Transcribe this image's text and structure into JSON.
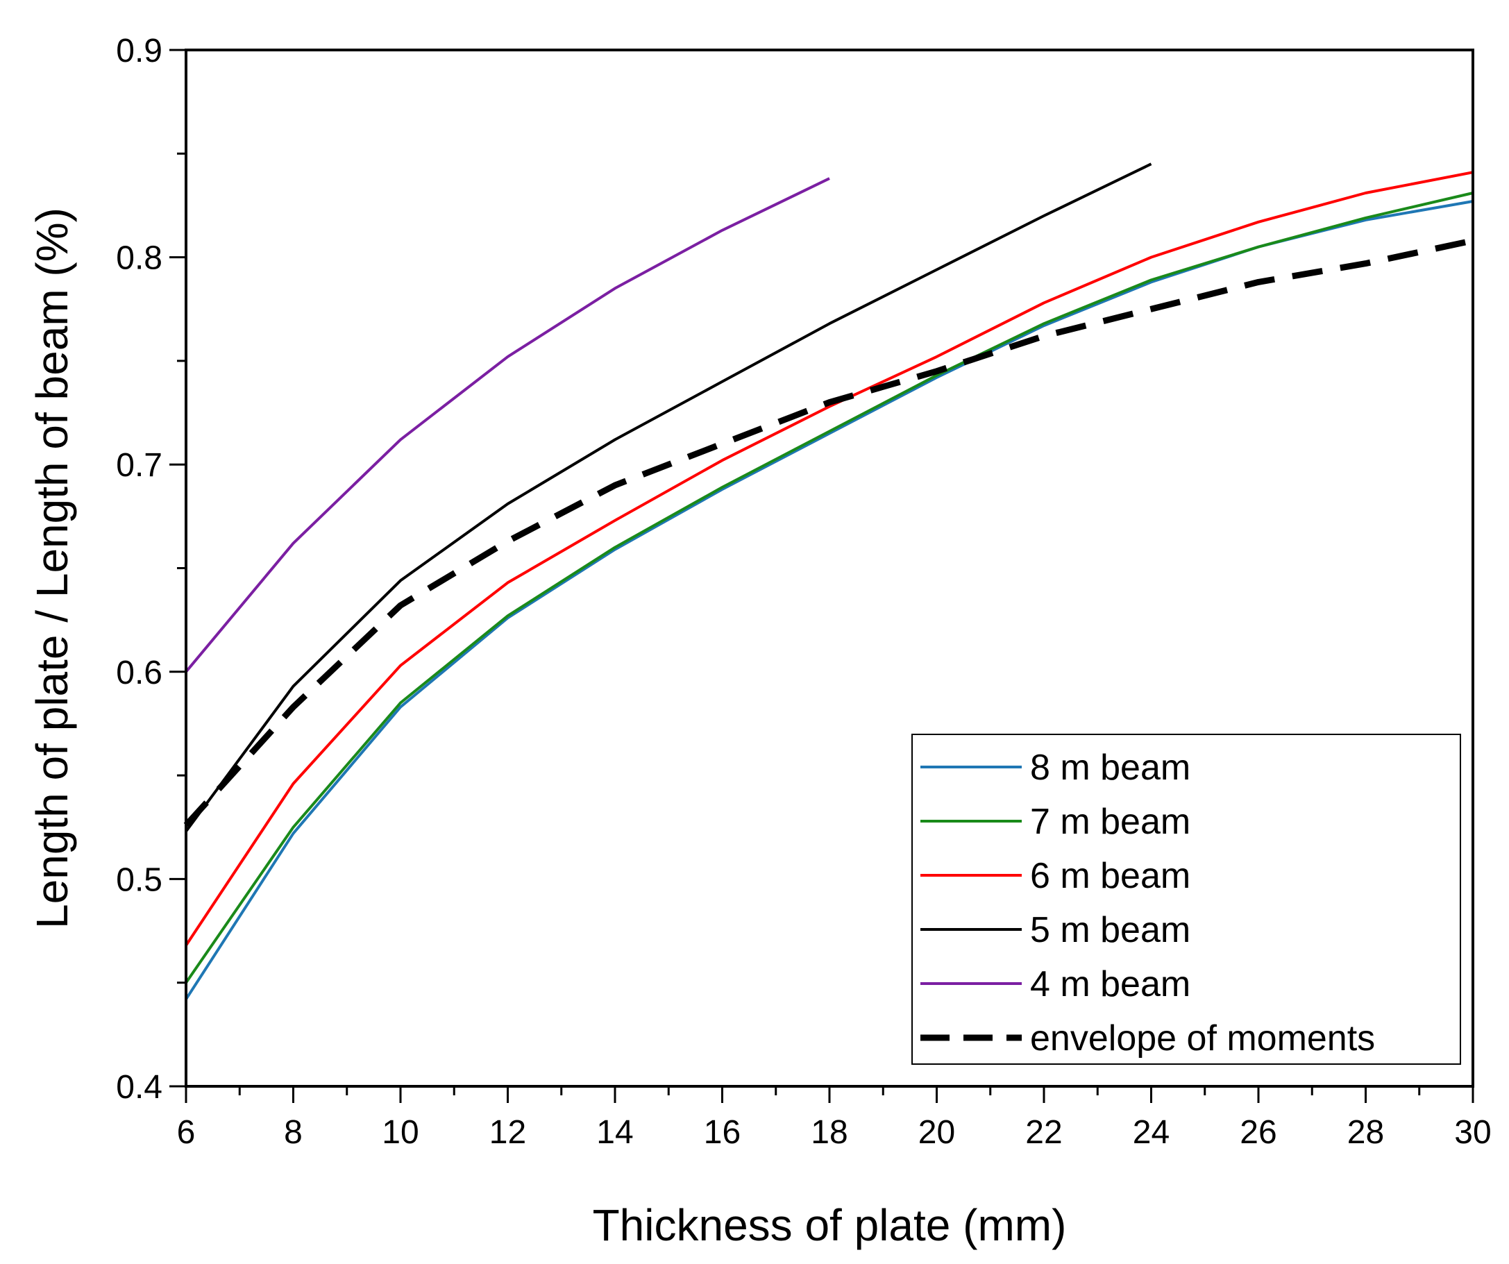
{
  "chart_data": {
    "type": "line",
    "title": "",
    "xlabel": "Thickness of plate (mm)",
    "ylabel": "Length of plate / Length of beam (%)",
    "xlim": [
      6,
      30
    ],
    "ylim": [
      0.4,
      0.9
    ],
    "x_ticks": [
      6,
      8,
      10,
      12,
      14,
      16,
      18,
      20,
      22,
      24,
      26,
      28,
      30
    ],
    "x_tick_labels": [
      "6",
      "8",
      "10",
      "12",
      "14",
      "16",
      "18",
      "20",
      "22",
      "24",
      "26",
      "28",
      "30"
    ],
    "y_ticks": [
      0.4,
      0.5,
      0.6,
      0.7,
      0.8,
      0.9
    ],
    "y_tick_labels": [
      "0.4",
      "0.5",
      "0.6",
      "0.7",
      "0.8",
      "0.9"
    ],
    "grid": false,
    "legend_position": "bottom-right",
    "series": [
      {
        "name": "8 m beam",
        "color": "#1f77b4",
        "dashed": false,
        "x": [
          6,
          8,
          10,
          12,
          14,
          16,
          18,
          20,
          22,
          24,
          26,
          28,
          30
        ],
        "y": [
          0.442,
          0.522,
          0.583,
          0.626,
          0.659,
          0.688,
          0.715,
          0.742,
          0.767,
          0.788,
          0.805,
          0.818,
          0.827
        ]
      },
      {
        "name": "7 m beam",
        "color": "#1a8a1a",
        "dashed": false,
        "x": [
          6,
          8,
          10,
          12,
          14,
          16,
          18,
          20,
          22,
          24,
          26,
          28,
          30
        ],
        "y": [
          0.45,
          0.525,
          0.585,
          0.627,
          0.66,
          0.689,
          0.716,
          0.743,
          0.768,
          0.789,
          0.805,
          0.819,
          0.831
        ]
      },
      {
        "name": "6 m beam",
        "color": "#ff0000",
        "dashed": false,
        "x": [
          6,
          8,
          10,
          12,
          14,
          16,
          18,
          20,
          22,
          24,
          26,
          28,
          30
        ],
        "y": [
          0.468,
          0.546,
          0.603,
          0.643,
          0.673,
          0.702,
          0.728,
          0.752,
          0.778,
          0.8,
          0.817,
          0.831,
          0.841
        ]
      },
      {
        "name": "5 m beam",
        "color": "#000000",
        "dashed": false,
        "x": [
          6,
          8,
          10,
          12,
          14,
          16,
          18,
          20,
          22,
          24
        ],
        "y": [
          0.523,
          0.593,
          0.644,
          0.681,
          0.712,
          0.74,
          0.768,
          0.794,
          0.82,
          0.845
        ]
      },
      {
        "name": "4 m beam",
        "color": "#7b1fa2",
        "dashed": false,
        "x": [
          6,
          8,
          10,
          12,
          14,
          16,
          18
        ],
        "y": [
          0.6,
          0.662,
          0.712,
          0.752,
          0.785,
          0.813,
          0.838
        ]
      },
      {
        "name": "envelope of moments",
        "color": "#000000",
        "dashed": true,
        "x": [
          6,
          8,
          10,
          12,
          14,
          16,
          18,
          20,
          22,
          24,
          26,
          28,
          30
        ],
        "y": [
          0.526,
          0.583,
          0.632,
          0.663,
          0.69,
          0.71,
          0.73,
          0.745,
          0.762,
          0.775,
          0.788,
          0.797,
          0.808
        ]
      }
    ]
  }
}
